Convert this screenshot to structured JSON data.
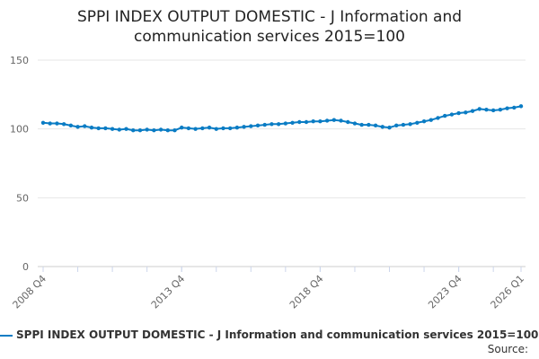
{
  "chart_data": {
    "type": "line",
    "title": "SPPI INDEX OUTPUT DOMESTIC - J Information and communication services 2015=100",
    "title_lines": [
      "SPPI INDEX OUTPUT DOMESTIC - J Information and",
      "communication services 2015=100"
    ],
    "xlabel": "",
    "ylabel": "",
    "ylim": [
      0,
      150
    ],
    "yticks": [
      "0",
      "50",
      "100",
      "150"
    ],
    "xticks": [
      {
        "label": "2008 Q4",
        "index": 0
      },
      {
        "label": "2013 Q4",
        "index": 20
      },
      {
        "label": "2018 Q4",
        "index": 40
      },
      {
        "label": "2023 Q4",
        "index": 60
      },
      {
        "label": "2026 Q1",
        "index": 69
      }
    ],
    "grid": true,
    "legend_position": "bottom",
    "series": [
      {
        "name": "SPPI INDEX OUTPUT DOMESTIC - J Information and communication services 2015=100",
        "color": "#0a7cc4",
        "values": [
          104.5,
          104,
          104,
          103.5,
          102.5,
          101.5,
          102,
          101,
          100.5,
          100.5,
          100,
          99.5,
          100,
          99,
          99,
          99.5,
          99,
          99.5,
          99,
          99,
          101,
          100.5,
          100,
          100.5,
          101,
          100,
          100.5,
          100.5,
          101,
          101.5,
          102,
          102.5,
          103,
          103.5,
          103.5,
          104,
          104.5,
          105,
          105,
          105.5,
          105.5,
          106,
          106.5,
          106,
          105,
          104,
          103,
          103,
          102.5,
          101.5,
          101,
          102.5,
          103,
          103.5,
          104.5,
          105.5,
          106.5,
          108,
          109.5,
          110.5,
          111.5,
          112,
          113,
          114.5,
          114,
          113.5,
          114,
          115,
          115.5,
          116.5
        ]
      }
    ]
  },
  "source_label": "Source:"
}
